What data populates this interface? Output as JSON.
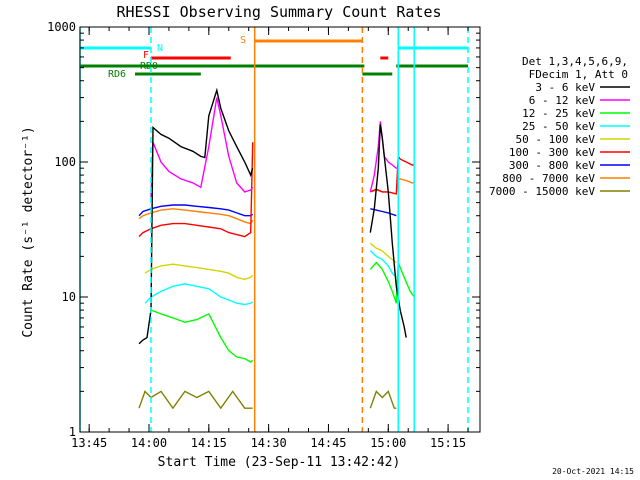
{
  "chart_data": {
    "type": "line",
    "title": "RHESSI Observing Summary Count Rates",
    "xlabel": "Start Time (23-Sep-11 13:42:42)",
    "ylabel": "Count Rate (s⁻¹ detector⁻¹)",
    "yscale": "log",
    "ylim": [
      1,
      1000
    ],
    "xlim": [
      "13:42:42",
      "15:23:00"
    ],
    "x_ticks": [
      "13:45",
      "14:00",
      "14:15",
      "14:30",
      "14:45",
      "15:00",
      "15:15"
    ],
    "y_ticks": [
      "1",
      "10",
      "100",
      "1000"
    ],
    "legend": {
      "placement": "right",
      "header": [
        "Det 1,3,4,5,6,9,",
        "FDecim 1, Att 0"
      ],
      "entries": [
        {
          "label": "3 - 6 keV",
          "color": "#000000"
        },
        {
          "label": "6 - 12 keV",
          "color": "#ff00ff"
        },
        {
          "label": "12 - 25 keV",
          "color": "#00ff00"
        },
        {
          "label": "25 - 50 keV",
          "color": "#00ffff"
        },
        {
          "label": "50 - 100 keV",
          "color": "#d4d400"
        },
        {
          "label": "100 - 300 keV",
          "color": "#ff0000"
        },
        {
          "label": "300 - 800 keV",
          "color": "#0000ff"
        },
        {
          "label": "800 - 7000 keV",
          "color": "#ff8000"
        },
        {
          "label": "7000 - 15000 keV",
          "color": "#808000"
        }
      ]
    },
    "flag_bars": [
      {
        "label": "N",
        "color": "#00ffff",
        "segments": [
          [
            "13:42:42",
            "14:00:30"
          ],
          [
            "15:02:30",
            "15:20:00"
          ]
        ]
      },
      {
        "label": "F",
        "color": "#ff0000",
        "segments": [
          [
            "14:00:30",
            "14:20:30"
          ],
          [
            "14:58:00",
            "15:00:00"
          ]
        ]
      },
      {
        "label": "S",
        "color": "#ff8000",
        "segments": [
          [
            "14:26:30",
            "14:53:30"
          ]
        ]
      },
      {
        "label": "RD0",
        "color": "#008000",
        "segments": [
          [
            "13:42:42",
            "14:26:30"
          ],
          [
            "14:26:30",
            "14:54:00"
          ],
          [
            "15:02:00",
            "15:20:00"
          ]
        ]
      },
      {
        "label": "RD6",
        "color": "#008000",
        "segments": [
          [
            "13:56:30",
            "14:13:00"
          ],
          [
            "14:53:30",
            "15:01:00"
          ]
        ]
      }
    ],
    "vlines": [
      {
        "time": "13:42:42",
        "color": "#00ffff",
        "style": "solid"
      },
      {
        "time": "14:00:30",
        "color": "#00ffff",
        "style": "dashed"
      },
      {
        "time": "14:26:30",
        "color": "#ff8000",
        "style": "solid"
      },
      {
        "time": "14:53:30",
        "color": "#ff8000",
        "style": "dashed"
      },
      {
        "time": "15:02:30",
        "color": "#00ffff",
        "style": "solid"
      },
      {
        "time": "15:06:30",
        "color": "#00ffff",
        "style": "solid"
      },
      {
        "time": "15:20:00",
        "color": "#00ffff",
        "style": "dashed"
      }
    ],
    "series": [
      {
        "name": "3 - 6 keV",
        "color": "#000000",
        "segments": [
          {
            "x": [
              "13:57:30",
              "13:58:30",
              "13:59:30",
              "14:00:30",
              "14:01:00",
              "14:03:00",
              "14:05:00",
              "14:08:00",
              "14:11:00",
              "14:13:00",
              "14:14:00",
              "14:15:00",
              "14:17:00",
              "14:18:00",
              "14:20:00",
              "14:22:00",
              "14:24:00",
              "14:25:30",
              "14:26:00"
            ],
            "y": [
              4.5,
              4.8,
              5,
              8,
              180,
              160,
              150,
              130,
              120,
              110,
              108,
              220,
              340,
              250,
              170,
              130,
              100,
              80,
              90
            ]
          },
          {
            "x": [
              "14:55:30",
              "14:56:30",
              "14:57:30",
              "14:58:00",
              "14:58:30",
              "14:59:00",
              "15:00:00",
              "15:01:00",
              "15:02:00",
              "15:03:00",
              "15:04:00",
              "15:04:30"
            ],
            "y": [
              30,
              45,
              90,
              190,
              150,
              110,
              60,
              25,
              12,
              8,
              6,
              5
            ]
          }
        ]
      },
      {
        "name": "6 - 12 keV",
        "color": "#ff00ff",
        "segments": [
          {
            "x": [
              "14:00:30",
              "14:01:00",
              "14:03:00",
              "14:05:00",
              "14:08:00",
              "14:11:00",
              "14:13:00",
              "14:15:00",
              "14:17:00",
              "14:18:00",
              "14:20:00",
              "14:22:00",
              "14:24:00",
              "14:25:30",
              "14:26:00"
            ],
            "y": [
              55,
              140,
              100,
              85,
              75,
              70,
              65,
              130,
              300,
              220,
              110,
              70,
              60,
              62,
              65
            ]
          },
          {
            "x": [
              "14:55:30",
              "14:56:30",
              "14:57:30",
              "14:58:00",
              "14:58:30",
              "14:59:00",
              "15:00:00",
              "15:01:00",
              "15:02:00",
              "15:02:30"
            ],
            "y": [
              60,
              80,
              130,
              200,
              150,
              110,
              100,
              95,
              90,
              90
            ]
          }
        ]
      },
      {
        "name": "12 - 25 keV",
        "color": "#00ff00",
        "segments": [
          {
            "x": [
              "14:00:30",
              "14:03:00",
              "14:06:00",
              "14:09:00",
              "14:12:00",
              "14:15:00",
              "14:18:00",
              "14:20:00",
              "14:22:00",
              "14:24:00",
              "14:25:30",
              "14:26:00"
            ],
            "y": [
              8,
              7.5,
              7,
              6.5,
              6.8,
              7.5,
              5,
              4,
              3.6,
              3.5,
              3.3,
              3.4
            ]
          },
          {
            "x": [
              "14:55:30",
              "14:57:00",
              "14:58:30",
              "15:00:00",
              "15:01:00",
              "15:02:00",
              "15:02:30",
              "15:04:00",
              "15:05:30",
              "15:06:30"
            ],
            "y": [
              16,
              18,
              16,
              13,
              11,
              9,
              18,
              14,
              11,
              10
            ]
          }
        ]
      },
      {
        "name": "25 - 50 keV",
        "color": "#00ffff",
        "segments": [
          {
            "x": [
              "13:59:00",
              "14:00:30",
              "14:03:00",
              "14:06:00",
              "14:09:00",
              "14:12:00",
              "14:15:00",
              "14:18:00",
              "14:20:00",
              "14:22:00",
              "14:24:00",
              "14:25:30",
              "14:26:00"
            ],
            "y": [
              9,
              10,
              11,
              12,
              12.5,
              12,
              11.5,
              10,
              9.5,
              9,
              8.8,
              9,
              9.2
            ]
          },
          {
            "x": [
              "14:55:30",
              "14:57:00",
              "14:58:30",
              "15:00:00",
              "15:01:00",
              "15:02:00"
            ],
            "y": [
              22,
              20,
              19,
              17,
              15,
              14
            ]
          }
        ]
      },
      {
        "name": "50 - 100 keV",
        "color": "#d4d400",
        "segments": [
          {
            "x": [
              "13:59:00",
              "14:00:30",
              "14:03:00",
              "14:06:00",
              "14:09:00",
              "14:12:00",
              "14:15:00",
              "14:18:00",
              "14:20:00",
              "14:22:00",
              "14:24:00",
              "14:25:30",
              "14:26:00"
            ],
            "y": [
              15,
              16,
              17,
              17.5,
              17,
              16.5,
              16,
              15.5,
              15,
              14,
              13.5,
              14,
              14.5
            ]
          },
          {
            "x": [
              "14:55:30",
              "14:57:00",
              "14:58:30",
              "15:00:00",
              "15:01:00",
              "15:02:00"
            ],
            "y": [
              25,
              23,
              22,
              20,
              19,
              18
            ]
          }
        ]
      },
      {
        "name": "100 - 300 keV",
        "color": "#ff0000",
        "segments": [
          {
            "x": [
              "13:57:30",
              "13:58:30",
              "14:00:30",
              "14:03:00",
              "14:06:00",
              "14:09:00",
              "14:12:00",
              "14:15:00",
              "14:18:00",
              "14:20:00",
              "14:22:00",
              "14:24:00",
              "14:25:30",
              "14:26:00"
            ],
            "y": [
              28,
              30,
              32,
              34,
              35,
              35,
              34,
              33,
              32,
              30,
              29,
              28,
              30,
              140
            ]
          },
          {
            "x": [
              "14:55:30",
              "14:57:00",
              "14:58:30",
              "15:00:00",
              "15:02:00",
              "15:02:30",
              "15:03:00",
              "15:04:30",
              "15:06:00",
              "15:06:30"
            ],
            "y": [
              60,
              63,
              60,
              60,
              58,
              110,
              105,
              100,
              95,
              95
            ]
          }
        ]
      },
      {
        "name": "300 - 800 keV",
        "color": "#0000ff",
        "segments": [
          {
            "x": [
              "13:57:30",
              "13:58:30",
              "14:00:30",
              "14:03:00",
              "14:06:00",
              "14:09:00",
              "14:12:00",
              "14:15:00",
              "14:18:00",
              "14:20:00",
              "14:22:00",
              "14:24:00",
              "14:25:30",
              "14:26:00"
            ],
            "y": [
              40,
              43,
              45,
              47,
              48,
              48,
              47,
              46,
              45,
              44,
              42,
              40,
              40,
              41
            ]
          },
          {
            "x": [
              "14:55:30",
              "14:57:00",
              "14:58:30",
              "15:00:00",
              "15:02:00"
            ],
            "y": [
              45,
              44,
              43,
              42,
              40
            ]
          }
        ]
      },
      {
        "name": "800 - 7000 keV",
        "color": "#ff8000",
        "segments": [
          {
            "x": [
              "13:57:30",
              "13:58:30",
              "14:00:30",
              "14:03:00",
              "14:06:00",
              "14:09:00",
              "14:12:00",
              "14:15:00",
              "14:18:00",
              "14:20:00",
              "14:22:00",
              "14:24:00",
              "14:25:30",
              "14:26:00"
            ],
            "y": [
              38,
              40,
              42,
              44,
              45,
              44,
              43,
              42,
              41,
              40,
              38,
              36,
              35,
              37
            ]
          },
          {
            "x": [
              "14:55:30",
              "14:57:00",
              "14:58:30",
              "15:00:00",
              "15:02:00",
              "15:02:30",
              "15:03:00",
              "15:04:30",
              "15:06:00",
              "15:06:30"
            ],
            "y": [
              60,
              62,
              60,
              60,
              58,
              75,
              75,
              73,
              70,
              70
            ]
          }
        ]
      },
      {
        "name": "7000 - 15000 keV",
        "color": "#808000",
        "segments": [
          {
            "x": [
              "13:57:30",
              "13:59:00",
              "14:00:30",
              "14:03:00",
              "14:06:00",
              "14:09:00",
              "14:12:00",
              "14:15:00",
              "14:18:00",
              "14:21:00",
              "14:24:00",
              "14:26:00"
            ],
            "y": [
              1.5,
              2,
              1.8,
              2,
              1.5,
              2,
              1.8,
              2,
              1.5,
              2,
              1.5,
              1.5
            ]
          },
          {
            "x": [
              "14:55:30",
              "14:57:00",
              "14:58:30",
              "15:00:00",
              "15:01:30",
              "15:02:00"
            ],
            "y": [
              1.5,
              2,
              1.8,
              2,
              1.5,
              1.5
            ]
          }
        ]
      }
    ]
  },
  "footer": {
    "timestamp": "20-Oct-2021 14:15"
  }
}
